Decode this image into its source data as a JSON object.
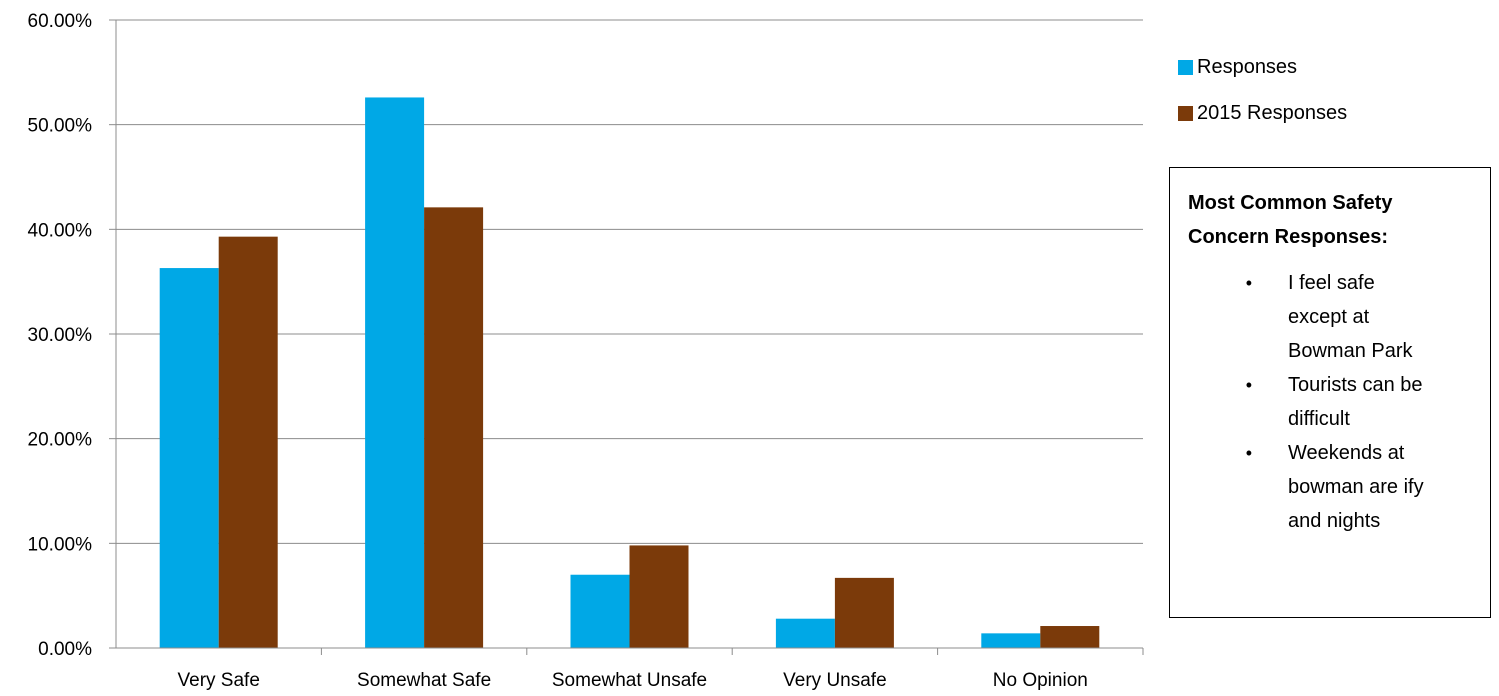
{
  "chart_data": {
    "type": "bar",
    "categories": [
      "Very Safe",
      "Somewhat Safe",
      "Somewhat Unsafe",
      "Very Unsafe",
      "No Opinion"
    ],
    "series": [
      {
        "name": "Responses",
        "color": "#00A8E6",
        "values": [
          36.3,
          52.6,
          7.0,
          2.8,
          1.4
        ]
      },
      {
        "name": "2015 Responses",
        "color": "#7B3A0A",
        "values": [
          39.3,
          42.1,
          9.8,
          6.7,
          2.1
        ]
      }
    ],
    "y_ticks": [
      "0.00%",
      "10.00%",
      "20.00%",
      "30.00%",
      "40.00%",
      "50.00%",
      "60.00%"
    ],
    "ylim": [
      0,
      60
    ],
    "grid": true,
    "legend_position": "right"
  },
  "legend": {
    "items": [
      {
        "label": "Responses",
        "color": "#00A8E6"
      },
      {
        "label": "2015 Responses",
        "color": "#7B3A0A"
      }
    ]
  },
  "note": {
    "title": "Most Common Safety Concern Responses:",
    "bullet": "•",
    "items": [
      "I feel safe except at Bowman Park",
      "Tourists can be difficult",
      "Weekends at bowman are ify and nights"
    ]
  }
}
